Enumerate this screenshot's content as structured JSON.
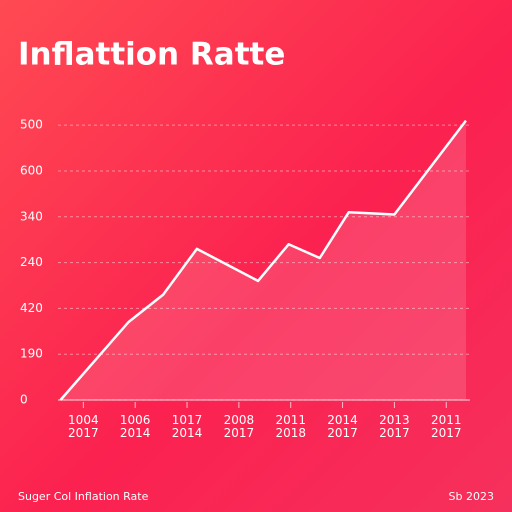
{
  "chart_data": {
    "type": "area",
    "title": "Inflattion Ratte",
    "footer_left": "Suger Col Inflation Rate",
    "footer_right": "Sb 2023",
    "x": [
      -0.44,
      0.87,
      1.54,
      2.19,
      3.37,
      3.96,
      4.56,
      5.12,
      6.0,
      7.38
    ],
    "values": [
      0,
      1.7,
      2.3,
      3.3,
      2.6,
      3.4,
      3.1,
      4.1,
      4.05,
      6.1
    ],
    "color": "#ffffff",
    "xlim": [
      -0.45,
      7.4
    ],
    "xticks": [
      {
        "value": 0,
        "label": "1004 2017"
      },
      {
        "value": 1,
        "label": "1006 2014"
      },
      {
        "value": 2,
        "label": "1017 2014"
      },
      {
        "value": 3,
        "label": "2008 2017"
      },
      {
        "value": 4,
        "label": "2011 2018"
      },
      {
        "value": 5,
        "label": "2014 2017"
      },
      {
        "value": 6,
        "label": "2013 2017"
      },
      {
        "value": 7,
        "label": "2011 2017"
      }
    ],
    "ylim": [
      0,
      6.1
    ],
    "yticks": [
      {
        "value": 0,
        "label": "0"
      },
      {
        "value": 1,
        "label": "190"
      },
      {
        "value": 2,
        "label": "420"
      },
      {
        "value": 3,
        "label": "240"
      },
      {
        "value": 4,
        "label": "340"
      },
      {
        "value": 5,
        "label": "600"
      },
      {
        "value": 6,
        "label": "500"
      }
    ],
    "grid": true
  }
}
